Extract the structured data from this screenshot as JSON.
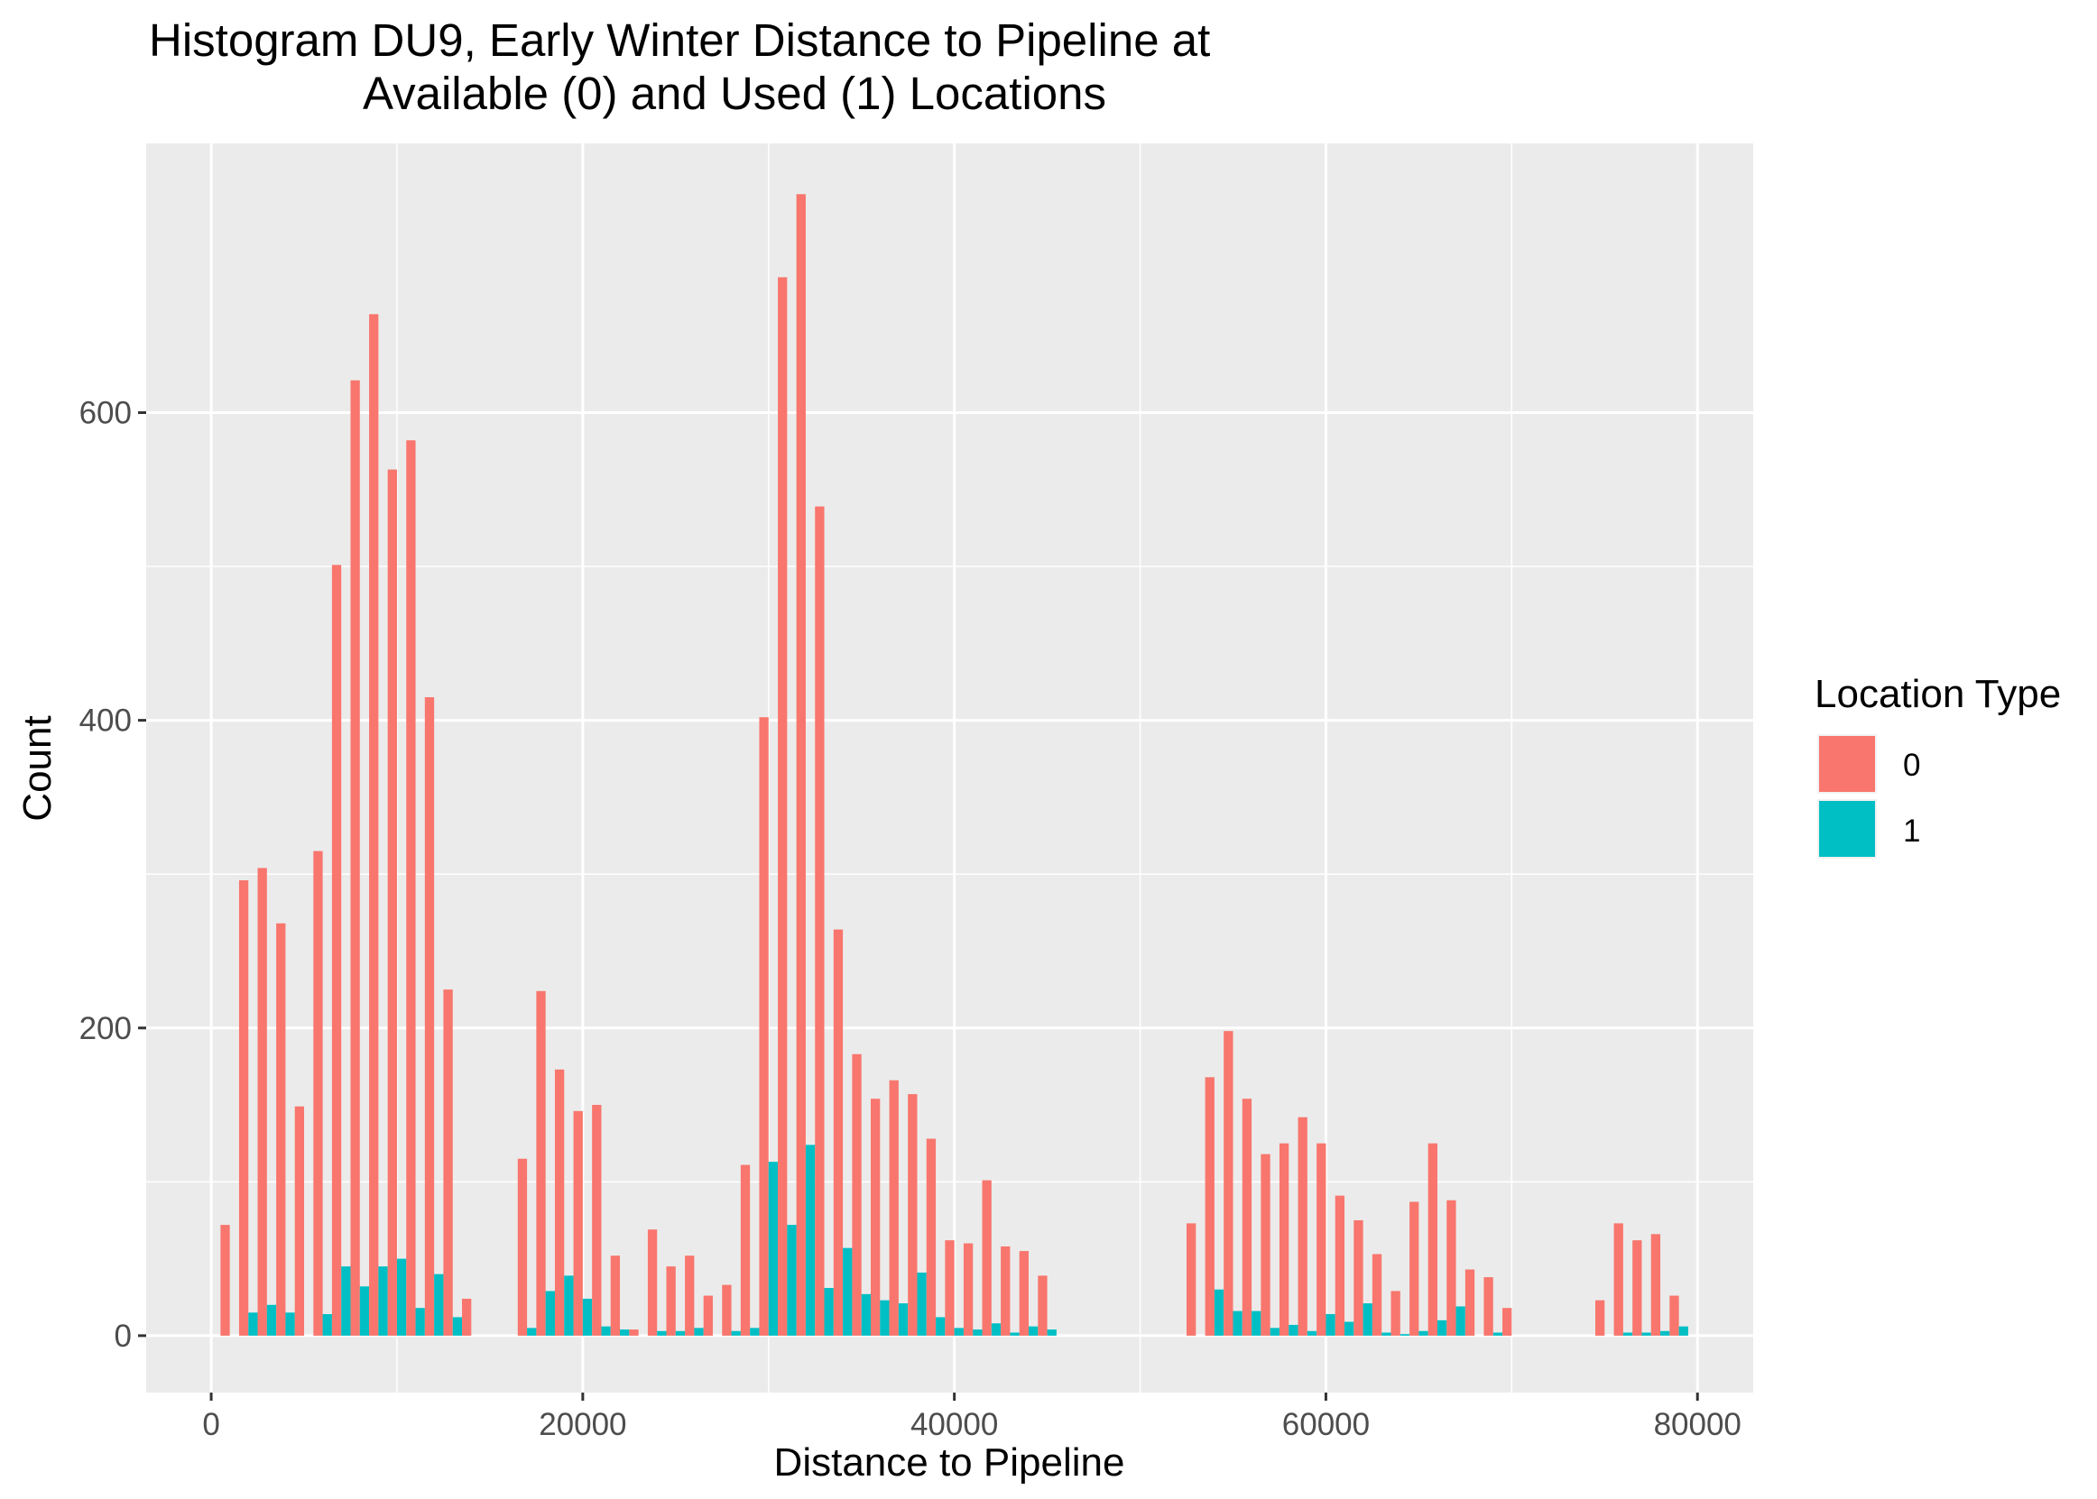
{
  "chart_data": {
    "type": "bar",
    "title_line1": "Histogram DU9, Early Winter Distance to Pipeline at",
    "title_line2": "Available (0) and Used (1) Locations",
    "xlabel": "Distance to Pipeline",
    "ylabel": "Count",
    "xlim": [
      -3500,
      83000
    ],
    "ylim": [
      -37,
      775
    ],
    "x_ticks": [
      0,
      20000,
      40000,
      60000,
      80000
    ],
    "x_tick_labels": [
      "0",
      "20000",
      "40000",
      "60000",
      "80000"
    ],
    "y_ticks": [
      0,
      200,
      400,
      600
    ],
    "y_tick_labels": [
      "0",
      "200",
      "400",
      "600"
    ],
    "grid": true,
    "bin_width": 1000,
    "legend": {
      "title": "Location Type",
      "position": "right"
    },
    "x": [
      1000,
      2000,
      3000,
      4000,
      5000,
      6000,
      7000,
      8000,
      9000,
      10000,
      11000,
      12000,
      13000,
      14000,
      15000,
      16000,
      17000,
      18000,
      19000,
      20000,
      21000,
      22000,
      23000,
      24000,
      25000,
      26000,
      27000,
      28000,
      29000,
      30000,
      31000,
      32000,
      33000,
      34000,
      35000,
      36000,
      37000,
      38000,
      39000,
      40000,
      41000,
      42000,
      43000,
      44000,
      45000,
      46000,
      47000,
      48000,
      49000,
      50000,
      51000,
      52000,
      53000,
      54000,
      55000,
      56000,
      57000,
      58000,
      59000,
      60000,
      61000,
      62000,
      63000,
      64000,
      65000,
      66000,
      67000,
      68000,
      69000,
      70000,
      71000,
      72000,
      73000,
      74000,
      75000,
      76000,
      77000,
      78000,
      79000
    ],
    "series": [
      {
        "name": "0",
        "color": "#F8766D",
        "values": [
          72,
          296,
          304,
          268,
          149,
          315,
          501,
          621,
          664,
          563,
          582,
          415,
          225,
          24,
          0,
          0,
          115,
          224,
          173,
          146,
          150,
          52,
          4,
          69,
          45,
          52,
          26,
          33,
          111,
          402,
          688,
          742,
          539,
          264,
          183,
          154,
          166,
          157,
          128,
          62,
          60,
          101,
          58,
          55,
          39,
          0,
          0,
          0,
          0,
          0,
          0,
          0,
          73,
          168,
          198,
          154,
          118,
          125,
          142,
          125,
          91,
          75,
          53,
          29,
          87,
          125,
          88,
          43,
          38,
          18,
          0,
          0,
          0,
          0,
          23,
          73,
          62,
          66,
          26
        ]
      },
      {
        "name": "1",
        "color": "#00BFC4",
        "values": [
          0,
          15,
          20,
          15,
          0,
          14,
          45,
          32,
          45,
          50,
          18,
          40,
          12,
          0,
          0,
          0,
          5,
          29,
          39,
          24,
          6,
          4,
          0,
          3,
          3,
          5,
          0,
          3,
          5,
          113,
          72,
          124,
          31,
          57,
          27,
          23,
          21,
          41,
          12,
          5,
          4,
          8,
          2,
          6,
          4,
          0,
          0,
          0,
          0,
          0,
          0,
          0,
          0,
          30,
          16,
          16,
          5,
          7,
          3,
          14,
          9,
          21,
          2,
          1,
          3,
          10,
          19,
          0,
          2,
          0,
          0,
          0,
          0,
          0,
          0,
          2,
          2,
          3,
          6
        ]
      }
    ]
  }
}
